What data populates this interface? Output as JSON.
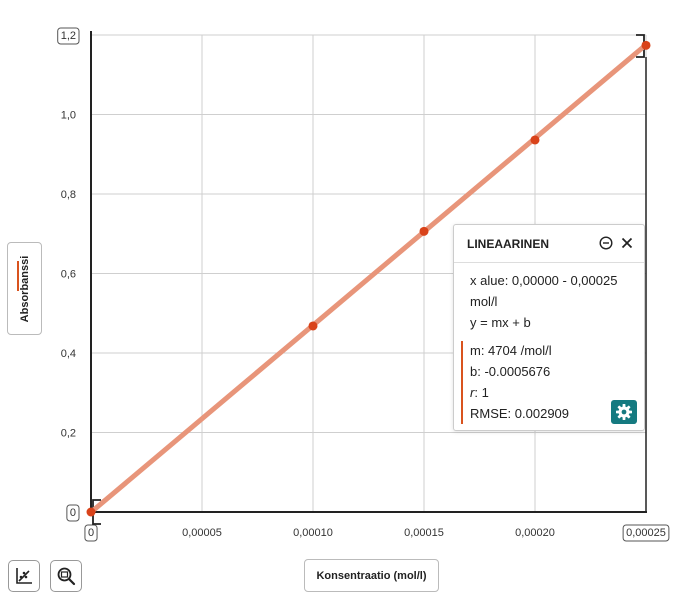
{
  "chart_data": {
    "type": "scatter",
    "x": [
      0,
      0.0001,
      0.00015,
      0.0002,
      0.00025
    ],
    "y": [
      0,
      0.468,
      0.706,
      0.936,
      1.174
    ],
    "xlim": [
      0,
      0.00025
    ],
    "ylim": [
      0,
      1.2
    ],
    "x_ticks": [
      "0",
      "0,00005",
      "0,00010",
      "0,00015",
      "0,00020",
      "0,00025"
    ],
    "y_ticks": [
      "0",
      "0,2",
      "0,4",
      "0,6",
      "0,8",
      "1,0",
      "1,2"
    ],
    "xlabel": "Konsentraatio (mol/l)",
    "ylabel": "Absorbanssi",
    "grid": true,
    "fit": {
      "m": 4704,
      "b": -0.0005676
    },
    "colors": {
      "points": "#d9431a",
      "fit_line": "#e8957a",
      "axis": "#222222",
      "grid": "#cfcfcf"
    }
  },
  "fit_panel": {
    "title": "LINEAARINEN",
    "range_line1": "x alue: 0,00000 - 0,00025",
    "range_line2": "mol/l",
    "equation": "y = mx + b",
    "m": "m: 4704 /mol/l",
    "b": "b: -0.0005676",
    "r_label": "r",
    "r_value": ": 1",
    "rmse": "RMSE: 0.002909",
    "accent": "#d9531e",
    "gear_color": "#157a80"
  },
  "axis_buttons": {
    "x_label": "Konsentraatio (mol/l)",
    "y_label": "Absorbanssi"
  },
  "tools": {
    "fit_icon": "curve-fit-icon",
    "zoom_icon": "zoom-reset-icon"
  }
}
